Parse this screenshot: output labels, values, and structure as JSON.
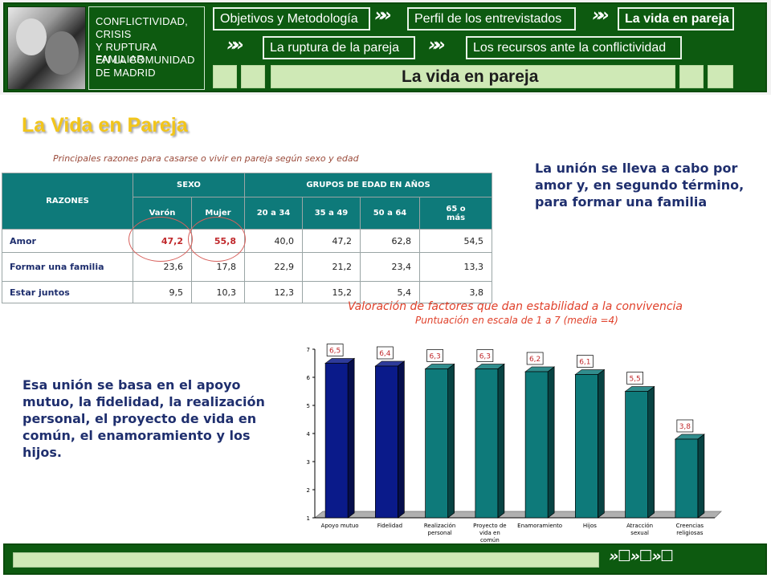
{
  "header": {
    "project_lines": [
      "CONFLICTIVIDAD,",
      "CRISIS",
      "Y RUPTURA FAMILIAR",
      "EN LA COMUNIDAD",
      "DE MADRID"
    ],
    "nav": {
      "objetivos": "Objetivos y Metodología",
      "perfil": "Perfil de los entrevistados",
      "vida": "La vida en pareja",
      "ruptura": "La ruptura de la pareja",
      "recursos": "Los recursos ante la conflictividad"
    },
    "section_title": "La vida en pareja"
  },
  "page_title": "La Vida en Pareja",
  "table": {
    "caption": "Principales razones para casarse o vivir en pareja según sexo y edad",
    "col_reasons": "RAZONES",
    "group_sexo": "SEXO",
    "group_edad": "GRUPOS DE EDAD EN AÑOS",
    "subheaders": [
      "Varón",
      "Mujer",
      "20 a 34",
      "35 a 49",
      "50 a 64",
      "65 o más"
    ],
    "rows": [
      {
        "reason": "Amor",
        "values": [
          "47,2",
          "55,8",
          "40,0",
          "47,2",
          "62,8",
          "54,5"
        ]
      },
      {
        "reason": "Formar una familia",
        "values": [
          "23,6",
          "17,8",
          "22,9",
          "21,2",
          "23,4",
          "13,3"
        ]
      },
      {
        "reason": "Estar juntos",
        "values": [
          "9,5",
          "10,3",
          "12,3",
          "15,2",
          "5,4",
          "3,8"
        ]
      }
    ]
  },
  "side_text_1": "La unión se lleva a cabo por amor y, en segundo término, para formar una familia",
  "side_text_2": "Esa unión se basa en el apoyo mutuo, la fidelidad, la realización personal, el proyecto de vida en común, el enamoramiento y los hijos.",
  "colors": {
    "dark_green": "#0d5a10",
    "light_green": "#cfe9b6",
    "teal": "#0e7a7a",
    "navy_bar": "#0a1a8a",
    "title_yellow": "#f2c51a",
    "chart_text_red": "#e0402a",
    "highlight_red": "#c0282b"
  },
  "chart_data": {
    "type": "bar",
    "title": "Valoración de factores que dan estabilidad a la convivencia",
    "subtitle": "Puntuación en escala de 1 a 7 (media =4)",
    "categories": [
      "Apoyo mutuo",
      "Fidelidad",
      "Realización personal",
      "Proyecto de vida en común",
      "Enamoramiento",
      "Hijos",
      "Atracción sexual",
      "Creencias religiosas"
    ],
    "values": [
      6.5,
      6.4,
      6.3,
      6.3,
      6.2,
      6.1,
      5.5,
      3.8
    ],
    "data_labels": [
      "6,5",
      "6,4",
      "6,3",
      "6,3",
      "6,2",
      "6,1",
      "5,5",
      "3,8"
    ],
    "bar_colors": [
      "#0a1a8a",
      "#0a1a8a",
      "#0e7a7a",
      "#0e7a7a",
      "#0e7a7a",
      "#0e7a7a",
      "#0e7a7a",
      "#0e7a7a"
    ],
    "ylim": [
      1,
      7
    ],
    "yticks": [
      "1",
      "2",
      "3",
      "4",
      "5",
      "6",
      "7"
    ],
    "grid": false,
    "legend": "none"
  },
  "footer": {
    "chevrons": "» ☐ » ☐ » ☐"
  }
}
